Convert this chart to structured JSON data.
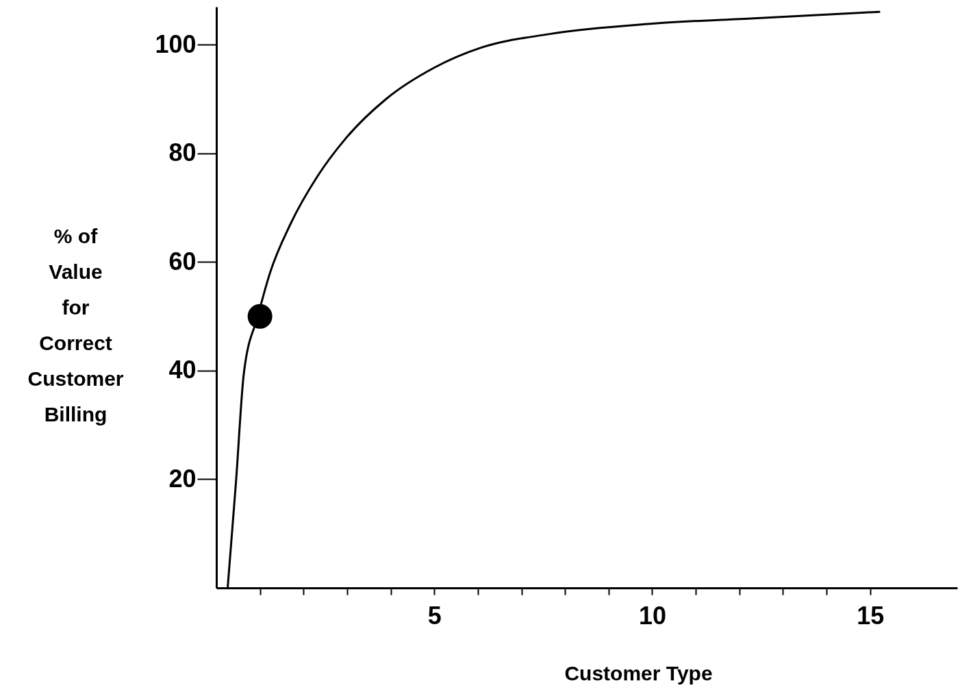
{
  "chart_data": {
    "type": "line",
    "xlabel": "Customer Type",
    "ylabel": "% of\nValue\nfor\nCorrect\nCustomer\nBilling",
    "xlim": [
      0,
      17
    ],
    "ylim": [
      0,
      107
    ],
    "xticks": [
      {
        "value": 1,
        "label": null
      },
      {
        "value": 2,
        "label": null
      },
      {
        "value": 3,
        "label": null
      },
      {
        "value": 4,
        "label": null
      },
      5,
      {
        "value": 6,
        "label": null
      },
      {
        "value": 7,
        "label": null
      },
      {
        "value": 8,
        "label": null
      },
      {
        "value": 9,
        "label": null
      },
      10,
      {
        "value": 11,
        "label": null
      },
      {
        "value": 12,
        "label": null
      },
      {
        "value": 13,
        "label": null
      },
      {
        "value": 14,
        "label": null
      },
      15
    ],
    "yticks": [
      20,
      40,
      60,
      80,
      100
    ],
    "grid": false,
    "series": [
      {
        "color": "#000000",
        "marker": "none",
        "x": [
          0.26,
          0.45,
          0.63,
          0.95,
          1.23,
          1.7,
          2.32,
          2.95,
          3.89,
          5.0,
          6.08,
          7.65,
          10,
          12.34,
          15.23
        ],
        "values": [
          0.1,
          19.5,
          39.5,
          50,
          58,
          67,
          75.8,
          82.6,
          90,
          95.8,
          99.5,
          102,
          103.9,
          104.9,
          106.1
        ]
      },
      {
        "type": "scatter",
        "color": "#000000",
        "marker": "circle",
        "x": [
          1
        ],
        "values": [
          50
        ]
      }
    ]
  }
}
